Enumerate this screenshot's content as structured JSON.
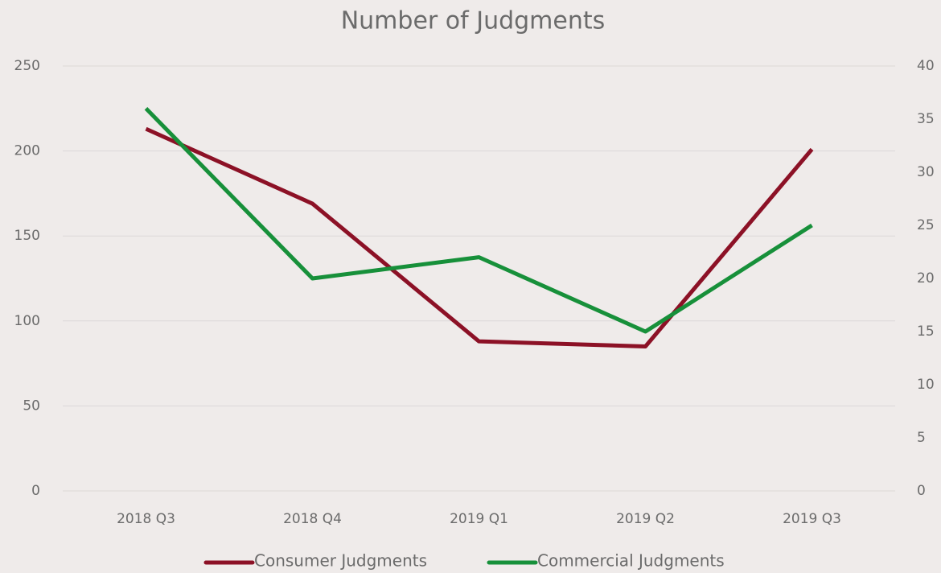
{
  "chart_data": {
    "type": "line",
    "title": "Number of Judgments",
    "categories": [
      "2018 Q3",
      "2018 Q4",
      "2019 Q1",
      "2019 Q2",
      "2019 Q3"
    ],
    "series": [
      {
        "name": "Consumer Judgments",
        "color": "#8c1126",
        "values": [
          213,
          169,
          88,
          85,
          201
        ]
      },
      {
        "name": "Commercial Judgments",
        "color": "#17903a",
        "values": [
          36,
          20,
          22,
          15,
          25
        ],
        "axis": "y2"
      }
    ],
    "ylim": [
      0,
      250
    ],
    "yticks": [
      0,
      50,
      100,
      150,
      200,
      250
    ],
    "y2lim": [
      0,
      40
    ],
    "y2ticks": [
      0,
      5,
      10,
      15,
      20,
      25,
      30,
      35,
      40
    ],
    "grid": true,
    "legend": "bottom"
  }
}
